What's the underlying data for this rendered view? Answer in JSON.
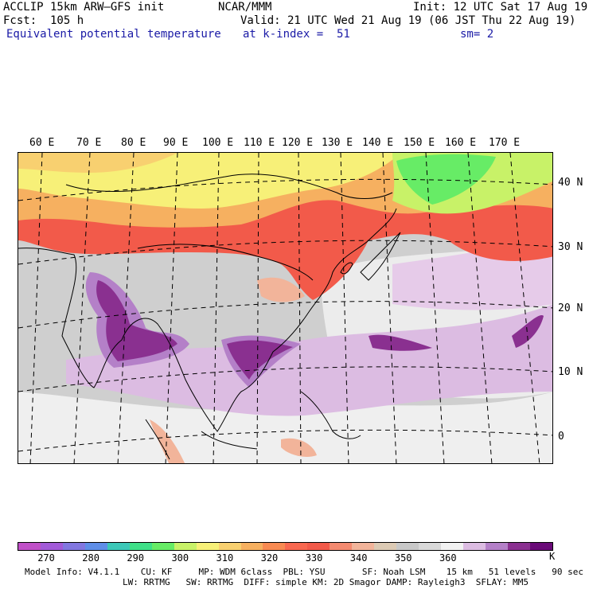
{
  "header": {
    "model": "ACCLIP 15km ARW–GFS init",
    "forecast": "Fcst:  105 h",
    "field": "Equivalent potential temperature",
    "org": "NCAR/MMM",
    "init": "Init: 12 UTC Sat 17 Aug 19",
    "valid": "Valid: 21 UTC Wed 21 Aug 19 (06 JST Thu 22 Aug 19)",
    "level": "at k-index =  51",
    "smooth": "sm= 2"
  },
  "map": {
    "lon_labels": [
      "60 E",
      "70 E",
      "80 E",
      "90 E",
      "100 E",
      "110 E",
      "120 E",
      "130 E",
      "140 E",
      "150 E",
      "160 E",
      "170 E"
    ],
    "lat_labels": [
      "40 N",
      "30 N",
      "20 N",
      "10 N",
      "0"
    ]
  },
  "colorbar": {
    "colors": [
      "#c050c8",
      "#a25ad8",
      "#8277e0",
      "#5f8ee8",
      "#3cc8b8",
      "#3fe088",
      "#67ec66",
      "#c8f268",
      "#f7f078",
      "#f8d070",
      "#f6b060",
      "#f88a52",
      "#f86850",
      "#f25a4a",
      "#f48a70",
      "#f2b49a",
      "#dccab4",
      "#c8c8c8",
      "#d8d8d8",
      "#f2f2f2",
      "#dcbce2",
      "#b480c8",
      "#8a3090",
      "#6a0a78"
    ],
    "ticks": [
      "270",
      "280",
      "290",
      "300",
      "310",
      "320",
      "330",
      "340",
      "350",
      "360"
    ],
    "unit": "K",
    "tick_start_index": 1
  },
  "footer": {
    "line1": "Model Info: V4.1.1    CU: KF     MP: WDM 6class  PBL: YSU       SF: Noah LSM    15 km   51 levels   90 sec",
    "line2": "LW: RRTMG   SW: RRTMG  DIFF: simple KM: 2D Smagor DAMP: Rayleigh3  SFLAY: MM5"
  }
}
